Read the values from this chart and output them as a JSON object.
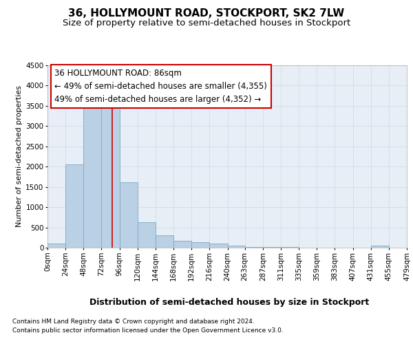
{
  "title": "36, HOLLYMOUNT ROAD, STOCKPORT, SK2 7LW",
  "subtitle": "Size of property relative to semi-detached houses in Stockport",
  "xlabel": "Distribution of semi-detached houses by size in Stockport",
  "ylabel": "Number of semi-detached properties",
  "bin_left_edges": [
    0,
    24,
    48,
    72,
    96,
    120,
    144,
    168,
    192,
    216,
    240,
    263,
    287,
    311,
    335,
    359,
    383,
    407,
    431,
    455
  ],
  "bin_right_edges": [
    24,
    48,
    72,
    96,
    120,
    144,
    168,
    192,
    216,
    240,
    263,
    287,
    311,
    335,
    359,
    383,
    407,
    431,
    455,
    479
  ],
  "bar_heights": [
    100,
    2060,
    3750,
    3750,
    1620,
    630,
    300,
    175,
    130,
    100,
    55,
    20,
    20,
    10,
    5,
    5,
    5,
    5,
    50,
    5
  ],
  "xtick_labels": [
    "0sqm",
    "24sqm",
    "48sqm",
    "72sqm",
    "96sqm",
    "120sqm",
    "144sqm",
    "168sqm",
    "192sqm",
    "216sqm",
    "240sqm",
    "263sqm",
    "287sqm",
    "311sqm",
    "335sqm",
    "359sqm",
    "383sqm",
    "407sqm",
    "431sqm",
    "455sqm",
    "479sqm"
  ],
  "bar_color": "#bad0e4",
  "bar_edgecolor": "#7aaac8",
  "property_size": 86,
  "property_line_color": "#cc0000",
  "annotation_line1": "36 HOLLYMOUNT ROAD: 86sqm",
  "annotation_line2": "← 49% of semi-detached houses are smaller (4,355)",
  "annotation_line3": "49% of semi-detached houses are larger (4,352) →",
  "annotation_box_color": "#ffffff",
  "annotation_box_edgecolor": "#cc0000",
  "ylim": [
    0,
    4500
  ],
  "yticks": [
    0,
    500,
    1000,
    1500,
    2000,
    2500,
    3000,
    3500,
    4000,
    4500
  ],
  "grid_color": "#cdd8e8",
  "background_color": "#e8eef5",
  "footer_line1": "Contains HM Land Registry data © Crown copyright and database right 2024.",
  "footer_line2": "Contains public sector information licensed under the Open Government Licence v3.0.",
  "title_fontsize": 11,
  "subtitle_fontsize": 9.5,
  "xlabel_fontsize": 9,
  "ylabel_fontsize": 8,
  "tick_fontsize": 7.5,
  "footer_fontsize": 6.5,
  "annot_fontsize": 8.5
}
